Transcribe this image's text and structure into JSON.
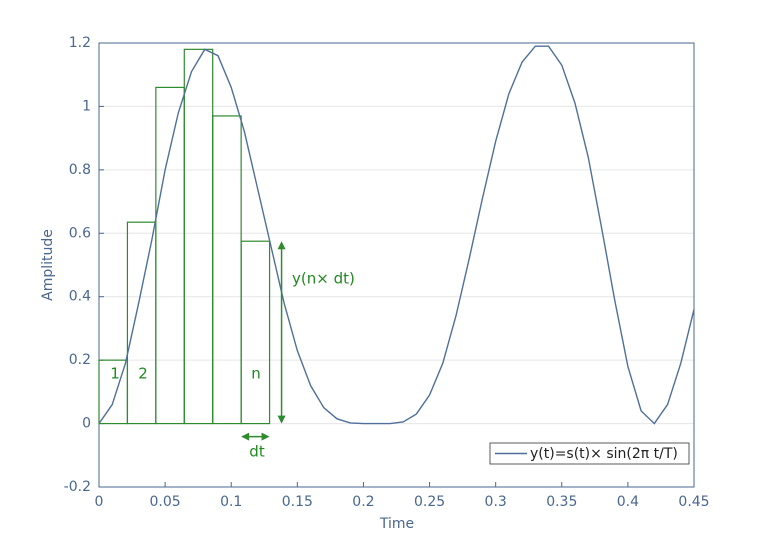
{
  "chart_data": {
    "type": "line",
    "xlabel": "Time",
    "ylabel": "Amplitude",
    "x": [
      0,
      0.01,
      0.02,
      0.03,
      0.04,
      0.05,
      0.06,
      0.07,
      0.08,
      0.09,
      0.1,
      0.11,
      0.12,
      0.13,
      0.14,
      0.15,
      0.16,
      0.17,
      0.18,
      0.19,
      0.2,
      0.21,
      0.22,
      0.23,
      0.24,
      0.25,
      0.26,
      0.27,
      0.28,
      0.29,
      0.3,
      0.31,
      0.32,
      0.33,
      0.34,
      0.35,
      0.36,
      0.37,
      0.38,
      0.39,
      0.4,
      0.41,
      0.42,
      0.43,
      0.44,
      0.45
    ],
    "series": [
      {
        "name": "y(t)=s(t)× sin(2π t/T)",
        "color": "#4f6f9c",
        "values": [
          0,
          0.06,
          0.19,
          0.38,
          0.58,
          0.8,
          0.98,
          1.11,
          1.18,
          1.16,
          1.06,
          0.92,
          0.74,
          0.56,
          0.38,
          0.23,
          0.12,
          0.05,
          0.015,
          0.002,
          0,
          0,
          0,
          0.005,
          0.03,
          0.09,
          0.19,
          0.34,
          0.52,
          0.71,
          0.89,
          1.04,
          1.14,
          1.19,
          1.19,
          1.13,
          1.01,
          0.84,
          0.62,
          0.39,
          0.18,
          0.04,
          0,
          0.06,
          0.19,
          0.36
        ]
      }
    ],
    "steps": {
      "color": "#2e8b2e",
      "edges": [
        0,
        0.0215,
        0.043,
        0.0645,
        0.086,
        0.1075,
        0.129
      ],
      "values": [
        0.2,
        0.635,
        1.06,
        1.18,
        0.97,
        0.575
      ]
    },
    "annotations": [
      "1",
      "2",
      "n",
      "y(n× dt)",
      "dt"
    ],
    "xlim": [
      0,
      0.45
    ],
    "xticks": [
      0,
      0.05,
      0.1,
      0.15,
      0.2,
      0.25,
      0.3,
      0.35,
      0.4,
      0.45
    ],
    "ylim": [
      -0.2,
      1.2
    ],
    "yticks": [
      -0.2,
      0,
      0.2,
      0.4,
      0.6,
      0.8,
      1,
      1.2
    ],
    "grid": true,
    "legend": "lower-right"
  }
}
